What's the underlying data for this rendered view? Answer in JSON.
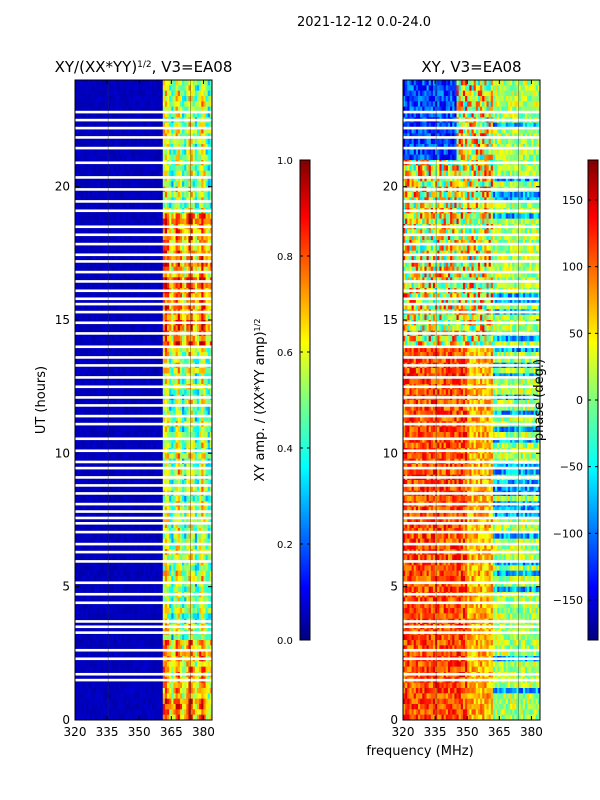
{
  "figure_title": "2021-12-12 0.0-24.0",
  "chart_data": [
    {
      "type": "heatmap",
      "title": "XY/(XX*YY)^1/2, V3=EA08",
      "title_main": "XY/(XX*YY)",
      "title_exp": "1/2",
      "title_tail": ", V3=EA08",
      "xlabel": "",
      "ylabel": "UT (hours)",
      "xlim": [
        320,
        384
      ],
      "ylim": [
        0,
        24
      ],
      "xticks": [
        320,
        335,
        350,
        365,
        380
      ],
      "yticks": [
        0,
        5,
        10,
        15,
        20
      ],
      "colormap": "jet",
      "colorbar": {
        "label": "XY amp. / (XX*YY amp)^1/2",
        "label_main": "XY amp. / (XX*YY amp)",
        "label_exp": "1/2",
        "range": [
          0.0,
          1.0
        ],
        "ticks": [
          "0.0",
          "0.2",
          "0.4",
          "0.6",
          "0.8",
          "1.0"
        ]
      },
      "description": "Low amplitude (~0.05) below 361 MHz; high amplitude (0.4-0.9) between ~361 and 384 MHz"
    },
    {
      "type": "heatmap",
      "title": "XY, V3=EA08",
      "xlabel": "frequency (MHz)",
      "ylabel": "",
      "xlim": [
        320,
        384
      ],
      "ylim": [
        0,
        24
      ],
      "xticks": [
        320,
        335,
        350,
        365,
        380
      ],
      "yticks": [
        0,
        5,
        10,
        15,
        20
      ],
      "colormap": "jet",
      "colorbar": {
        "label": "phase (deg.)",
        "range": [
          -180,
          180
        ],
        "ticks": [
          "−150",
          "−100",
          "−50",
          "0",
          "50",
          "100",
          "150"
        ]
      },
      "description": "Phase mostly +80 to +150 deg below ~14 h, becoming noisy and mixed above; near-zero phase above 360 MHz"
    }
  ],
  "flag_gaps_hours": [
    1.5,
    1.72,
    2.3,
    2.62,
    3.28,
    3.5,
    3.7,
    4.4,
    4.72,
    5.15,
    5.95,
    6.3,
    6.6,
    7.05,
    7.38,
    7.58,
    7.82,
    8.1,
    8.5,
    8.8,
    9.1,
    9.45,
    9.68,
    10.1,
    10.55,
    11.1,
    11.4,
    11.8,
    12.1,
    12.5,
    12.85,
    13.3,
    13.6,
    14.0,
    14.5,
    14.9,
    15.3,
    15.6,
    15.8,
    16.1,
    16.45,
    16.8,
    17.2,
    17.45,
    17.85,
    18.2,
    18.5,
    19.1,
    19.45,
    19.9,
    20.35,
    20.9,
    21.45,
    21.85,
    22.2,
    22.5,
    22.8
  ]
}
